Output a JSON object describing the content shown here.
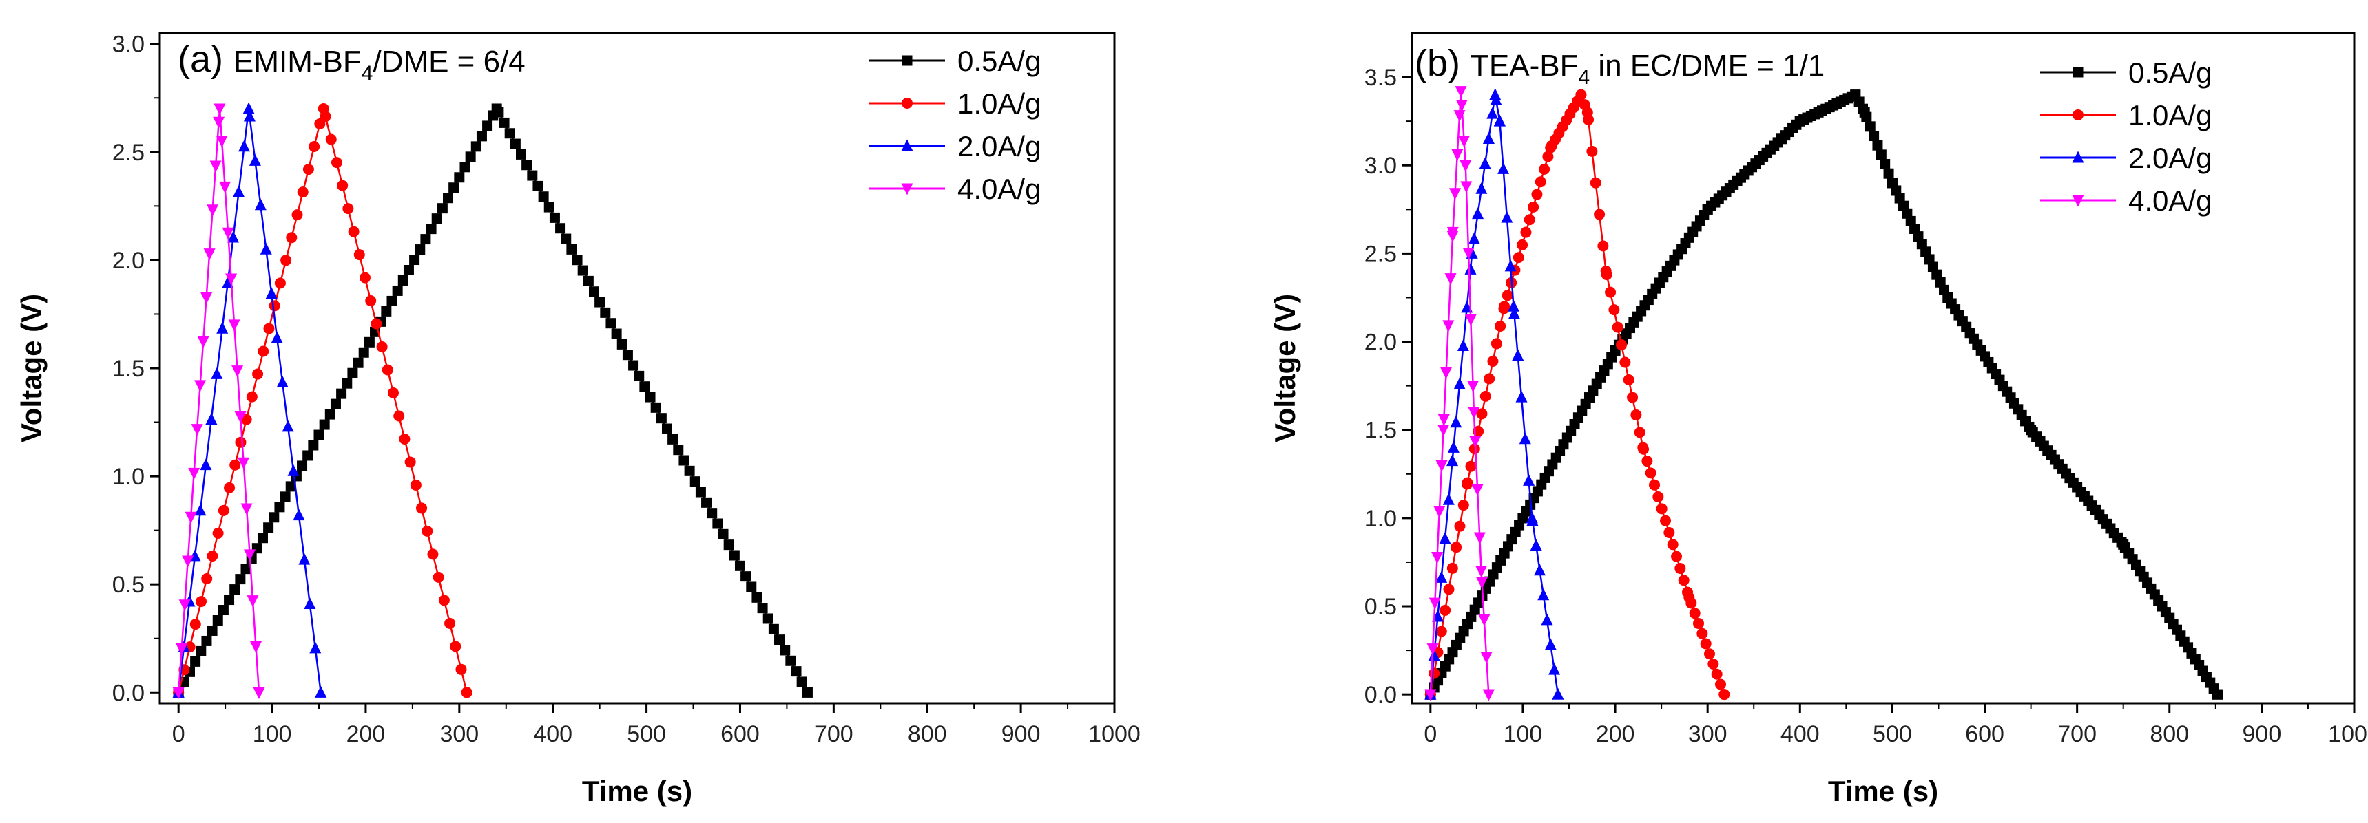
{
  "chart_data": [
    {
      "type": "line",
      "title": {
        "label": "(a)",
        "pre": "EMIM-BF",
        "sub": "4",
        "post": "/DME = 6/4"
      },
      "xlabel": "Time (s)",
      "ylabel": "Voltage (V)",
      "xlim": [
        -20,
        1000
      ],
      "ylim": [
        -0.05,
        3.05
      ],
      "xticks": [
        0,
        100,
        200,
        300,
        400,
        500,
        600,
        700,
        800,
        900,
        1000
      ],
      "yticks": [
        0.0,
        0.5,
        1.0,
        1.5,
        2.0,
        2.5,
        3.0
      ],
      "grid": false,
      "legend": "top-right",
      "series": [
        {
          "name": "0.5A/g",
          "color": "#000000",
          "marker": "square",
          "points": [
            [
              0,
              0
            ],
            [
              340,
              2.7
            ],
            [
              672,
              0
            ]
          ]
        },
        {
          "name": "1.0A/g",
          "color": "#ff0000",
          "marker": "circle",
          "points": [
            [
              0,
              0
            ],
            [
              155,
              2.7
            ],
            [
              308,
              0
            ]
          ]
        },
        {
          "name": "2.0A/g",
          "color": "#0000ff",
          "marker": "triangle-up",
          "points": [
            [
              0,
              0
            ],
            [
              75,
              2.7
            ],
            [
              152,
              0
            ]
          ]
        },
        {
          "name": "4.0A/g",
          "color": "#ff00ff",
          "marker": "triangle-down",
          "points": [
            [
              0,
              0
            ],
            [
              44,
              2.7
            ],
            [
              86,
              0
            ]
          ]
        }
      ]
    },
    {
      "type": "line",
      "title": {
        "label": "(b)",
        "pre": "TEA-BF",
        "sub": "4",
        "post": " in EC/DME = 1/1"
      },
      "xlabel": "Time (s)",
      "ylabel": "Voltage (V)",
      "xlim": [
        -20,
        1000
      ],
      "ylim": [
        -0.05,
        3.75
      ],
      "xticks": [
        0,
        100,
        200,
        300,
        400,
        500,
        600,
        700,
        800,
        900,
        1000
      ],
      "yticks": [
        0.0,
        0.5,
        1.0,
        1.5,
        2.0,
        2.5,
        3.0,
        3.5
      ],
      "grid": false,
      "legend": "top-right",
      "series": [
        {
          "name": "0.5A/g",
          "color": "#000000",
          "marker": "square",
          "points": [
            [
              0,
              0
            ],
            [
              100,
              1.0
            ],
            [
              200,
              1.95
            ],
            [
              300,
              2.75
            ],
            [
              400,
              3.25
            ],
            [
              460,
              3.4
            ],
            [
              470,
              3.3
            ],
            [
              500,
              2.9
            ],
            [
              560,
              2.25
            ],
            [
              650,
              1.5
            ],
            [
              750,
              0.85
            ],
            [
              852,
              0
            ]
          ]
        },
        {
          "name": "1.0A/g",
          "color": "#ff0000",
          "marker": "circle",
          "points": [
            [
              0,
              0
            ],
            [
              40,
              1.2
            ],
            [
              80,
              2.2
            ],
            [
              130,
              3.1
            ],
            [
              163,
              3.4
            ],
            [
              170,
              3.3
            ],
            [
              190,
              2.4
            ],
            [
              230,
              1.4
            ],
            [
              280,
              0.55
            ],
            [
              318,
              0
            ]
          ]
        },
        {
          "name": "2.0A/g",
          "color": "#0000ff",
          "marker": "triangle-up",
          "points": [
            [
              0,
              0
            ],
            [
              25,
              1.4
            ],
            [
              45,
              2.5
            ],
            [
              70,
              3.4
            ],
            [
              75,
              3.25
            ],
            [
              90,
              2.2
            ],
            [
              110,
              1.0
            ],
            [
              138,
              0
            ]
          ]
        },
        {
          "name": "4.0A/g",
          "color": "#ff00ff",
          "marker": "triangle-down",
          "points": [
            [
              0,
              0
            ],
            [
              14,
              1.5
            ],
            [
              24,
              2.6
            ],
            [
              33,
              3.42
            ],
            [
              38,
              3.0
            ],
            [
              47,
              1.6
            ],
            [
              55,
              0.7
            ],
            [
              63,
              0
            ]
          ]
        }
      ]
    }
  ]
}
